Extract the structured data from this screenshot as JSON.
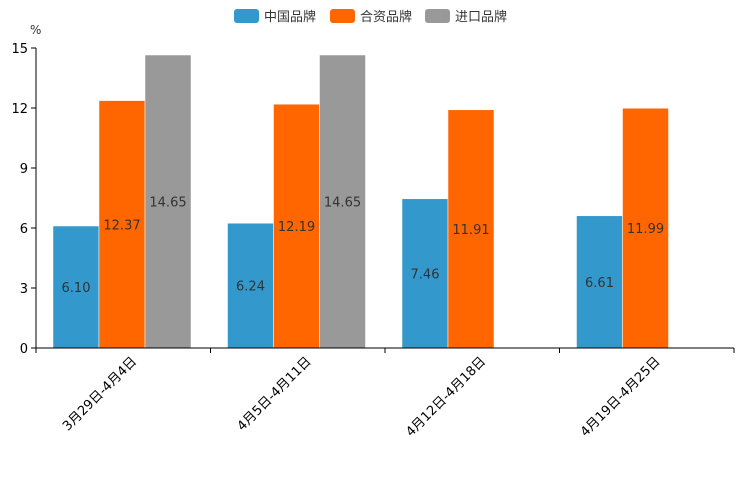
{
  "chart_data": {
    "type": "bar",
    "title": "",
    "xlabel": "",
    "ylabel": "%",
    "ylim": [
      0,
      15
    ],
    "yticks": [
      0,
      3,
      6,
      9,
      12,
      15
    ],
    "grid": false,
    "legend_position": "top-center",
    "categories": [
      "3月29日-4月4日",
      "4月5日-4月11日",
      "4月12日-4月18日",
      "4月19日-4月25日"
    ],
    "series": [
      {
        "name": "中国品牌",
        "color": "#3399CC",
        "values": [
          6.1,
          6.24,
          7.46,
          6.61
        ],
        "labels": [
          "6.10",
          "6.24",
          "7.46",
          "6.61"
        ]
      },
      {
        "name": "合资品牌",
        "color": "#FF6600",
        "values": [
          12.37,
          12.19,
          11.91,
          11.99
        ],
        "labels": [
          "12.37",
          "12.19",
          "11.91",
          "11.99"
        ]
      },
      {
        "name": "进口品牌",
        "color": "#999999",
        "values": [
          14.65,
          14.65,
          null,
          null
        ],
        "labels": [
          "14.65",
          "14.65",
          "",
          ""
        ]
      }
    ]
  }
}
